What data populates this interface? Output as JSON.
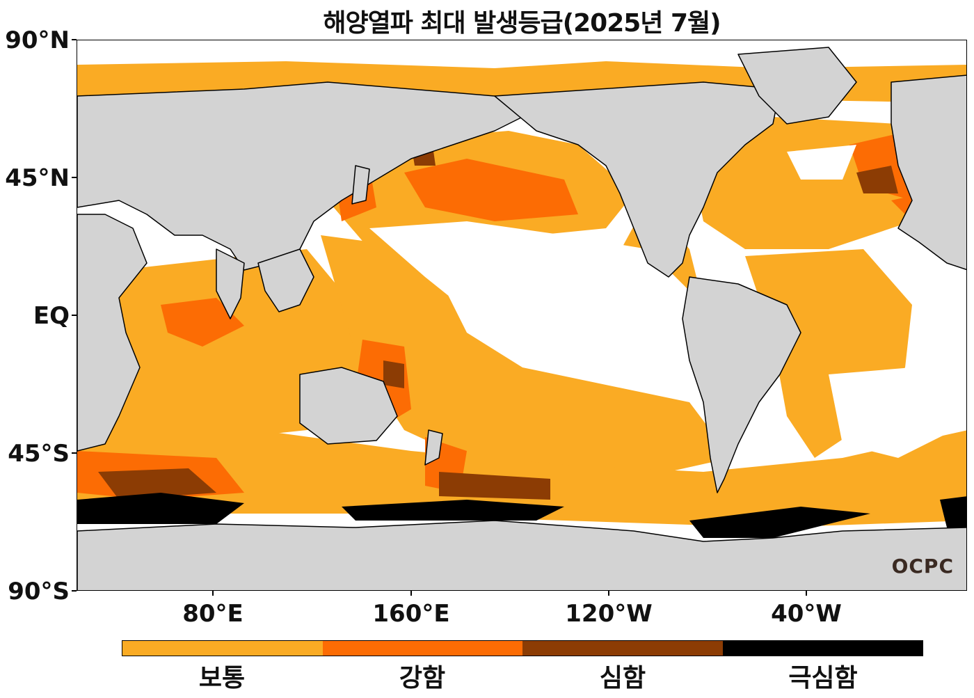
{
  "title": "해양열파 최대 발생등급(2025년 7월)",
  "axes": {
    "lat_labels": [
      "90°N",
      "45°N",
      "EQ",
      "45°S",
      "90°S"
    ],
    "lon_labels": [
      "80°E",
      "160°E",
      "120°W",
      "40°W"
    ]
  },
  "legend": {
    "categories": [
      {
        "label": "보통",
        "color": "#FAAB24"
      },
      {
        "label": "강함",
        "color": "#FC6C04"
      },
      {
        "label": "심함",
        "color": "#8C3C04"
      },
      {
        "label": "극심함",
        "color": "#000000"
      }
    ]
  },
  "colors": {
    "land": "#D3D3D3",
    "ocean_none": "#FFFFFF",
    "coast": "#000000"
  },
  "logo": "OCPC"
}
